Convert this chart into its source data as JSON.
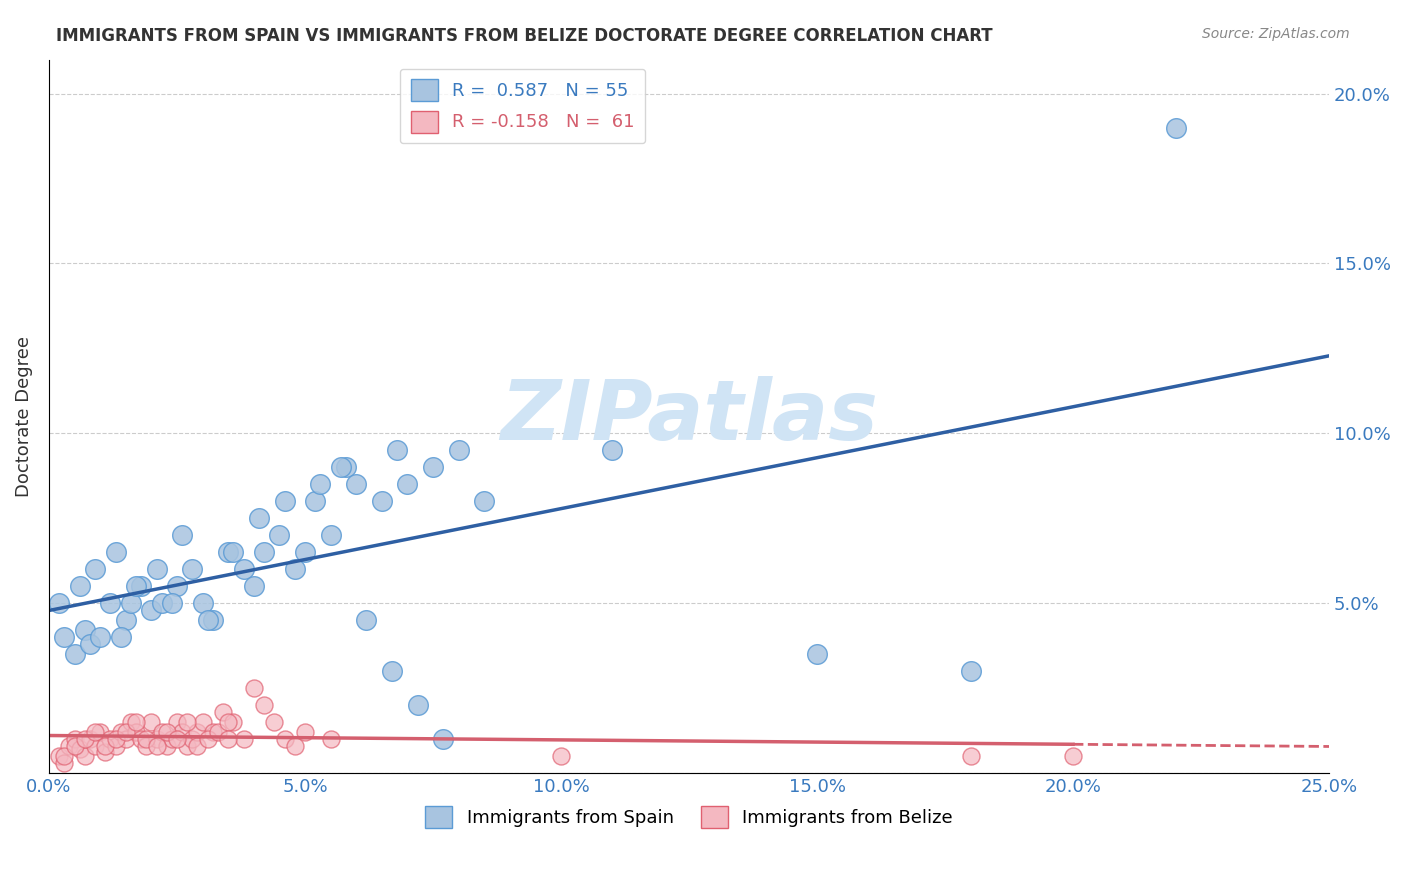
{
  "title": "IMMIGRANTS FROM SPAIN VS IMMIGRANTS FROM BELIZE DOCTORATE DEGREE CORRELATION CHART",
  "source": "Source: ZipAtlas.com",
  "ylabel": "Doctorate Degree",
  "xmin": 0.0,
  "xmax": 0.25,
  "ymin": 0.0,
  "ymax": 0.21,
  "xticks": [
    0.0,
    0.05,
    0.1,
    0.15,
    0.2,
    0.25
  ],
  "xticklabels": [
    "0.0%",
    "5.0%",
    "10.0%",
    "15.0%",
    "20.0%",
    "25.0%"
  ],
  "yticks": [
    0.0,
    0.05,
    0.1,
    0.15,
    0.2
  ],
  "yticklabels": [
    "",
    "5.0%",
    "10.0%",
    "15.0%",
    "20.0%"
  ],
  "spain_color": "#a8c4e0",
  "spain_edge_color": "#5b9bd5",
  "belize_color": "#f4b8c1",
  "belize_edge_color": "#e06070",
  "spain_R": 0.587,
  "spain_N": 55,
  "belize_R": -0.158,
  "belize_N": 61,
  "spain_line_color": "#2e5fa3",
  "belize_line_color": "#d45f6e",
  "watermark": "ZIPatlas",
  "watermark_color": "#d0e4f5",
  "legend_label_spain": "Immigrants from Spain",
  "legend_label_belize": "Immigrants from Belize",
  "spain_scatter_x": [
    0.005,
    0.007,
    0.008,
    0.01,
    0.012,
    0.015,
    0.016,
    0.018,
    0.02,
    0.022,
    0.025,
    0.028,
    0.03,
    0.032,
    0.035,
    0.038,
    0.04,
    0.042,
    0.045,
    0.048,
    0.05,
    0.052,
    0.055,
    0.058,
    0.06,
    0.065,
    0.068,
    0.07,
    0.075,
    0.08,
    0.003,
    0.006,
    0.009,
    0.013,
    0.017,
    0.021,
    0.026,
    0.031,
    0.036,
    0.041,
    0.046,
    0.053,
    0.057,
    0.062,
    0.067,
    0.072,
    0.077,
    0.002,
    0.014,
    0.024,
    0.11,
    0.085,
    0.15,
    0.18,
    0.22
  ],
  "spain_scatter_y": [
    0.035,
    0.042,
    0.038,
    0.04,
    0.05,
    0.045,
    0.05,
    0.055,
    0.048,
    0.05,
    0.055,
    0.06,
    0.05,
    0.045,
    0.065,
    0.06,
    0.055,
    0.065,
    0.07,
    0.06,
    0.065,
    0.08,
    0.07,
    0.09,
    0.085,
    0.08,
    0.095,
    0.085,
    0.09,
    0.095,
    0.04,
    0.055,
    0.06,
    0.065,
    0.055,
    0.06,
    0.07,
    0.045,
    0.065,
    0.075,
    0.08,
    0.085,
    0.09,
    0.045,
    0.03,
    0.02,
    0.01,
    0.05,
    0.04,
    0.05,
    0.095,
    0.08,
    0.035,
    0.03,
    0.19
  ],
  "belize_scatter_x": [
    0.002,
    0.003,
    0.004,
    0.005,
    0.006,
    0.007,
    0.008,
    0.009,
    0.01,
    0.011,
    0.012,
    0.013,
    0.014,
    0.015,
    0.016,
    0.017,
    0.018,
    0.019,
    0.02,
    0.021,
    0.022,
    0.023,
    0.024,
    0.025,
    0.026,
    0.027,
    0.028,
    0.029,
    0.03,
    0.032,
    0.034,
    0.036,
    0.038,
    0.04,
    0.042,
    0.044,
    0.046,
    0.048,
    0.05,
    0.055,
    0.003,
    0.005,
    0.007,
    0.009,
    0.011,
    0.013,
    0.015,
    0.017,
    0.019,
    0.021,
    0.023,
    0.025,
    0.027,
    0.029,
    0.031,
    0.033,
    0.035,
    0.1,
    0.18,
    0.2,
    0.035
  ],
  "belize_scatter_y": [
    0.005,
    0.003,
    0.008,
    0.01,
    0.007,
    0.005,
    0.01,
    0.008,
    0.012,
    0.006,
    0.01,
    0.008,
    0.012,
    0.01,
    0.015,
    0.012,
    0.01,
    0.008,
    0.015,
    0.01,
    0.012,
    0.008,
    0.01,
    0.015,
    0.012,
    0.008,
    0.01,
    0.012,
    0.015,
    0.012,
    0.018,
    0.015,
    0.01,
    0.025,
    0.02,
    0.015,
    0.01,
    0.008,
    0.012,
    0.01,
    0.005,
    0.008,
    0.01,
    0.012,
    0.008,
    0.01,
    0.012,
    0.015,
    0.01,
    0.008,
    0.012,
    0.01,
    0.015,
    0.008,
    0.01,
    0.012,
    0.015,
    0.005,
    0.005,
    0.005,
    0.01
  ]
}
